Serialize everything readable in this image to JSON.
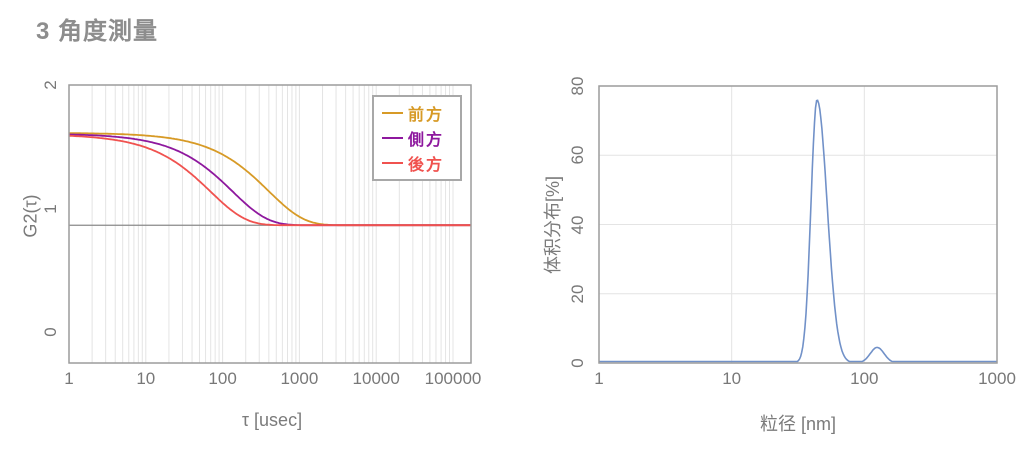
{
  "page": {
    "title": "3 角度測量",
    "title_color": "#8d8d8d",
    "background_color": "#ffffff"
  },
  "chart_data": [
    {
      "type": "line",
      "name": "multi-angle-autocorrelation",
      "xlabel": "τ  [usec]",
      "ylabel": "G2(τ)",
      "x_scale": "log",
      "xlim": [
        1,
        170000
      ],
      "x_ticks": [
        "1",
        "10",
        "100",
        "1000",
        "10000",
        "100000"
      ],
      "ylim": [
        -0.25,
        2
      ],
      "y_ticks": [
        "0",
        "1",
        "2"
      ],
      "grid": "vertical log minor gridlines only",
      "gridline_color": "#e4e4e4",
      "baseline_value": 0.865,
      "baseline_color": "#8a8a8a",
      "plateau_value": 1.61,
      "legend_position": "top-right",
      "series": [
        {
          "name": "前方",
          "color": "#d79a26",
          "plateau": 1.613,
          "baseline": 0.865,
          "tau_c": 400,
          "stretch_beta": 0.95,
          "half_decay_tau_usec": 270
        },
        {
          "name": "側方",
          "color": "#8e189e",
          "plateau": 1.607,
          "baseline": 0.865,
          "tau_c": 135,
          "stretch_beta": 0.95,
          "half_decay_tau_usec": 92
        },
        {
          "name": "後方",
          "color": "#f0524f",
          "plateau": 1.602,
          "baseline": 0.865,
          "tau_c": 70,
          "stretch_beta": 0.95,
          "half_decay_tau_usec": 48
        }
      ]
    },
    {
      "type": "line",
      "name": "particle-size-distribution",
      "xlabel": "粒径 [nm]",
      "ylabel": "体积分布[%]",
      "x_scale": "log",
      "xlim": [
        1,
        1000
      ],
      "x_ticks": [
        "1",
        "10",
        "100",
        "1000"
      ],
      "ylim": [
        0,
        80
      ],
      "y_ticks": [
        "0",
        "20",
        "40",
        "60",
        "80"
      ],
      "grid": "horizontal major gridlines at 20/40/60, vertical gridlines at 10/100",
      "gridline_color": "#e4e4e4",
      "line_color": "#7191c8",
      "peaks": [
        {
          "center_nm": 44,
          "height_pct": 76,
          "sigma_ln_left": 0.105,
          "sigma_ln_right": 0.175
        },
        {
          "center_nm": 125,
          "height_pct": 4.5,
          "sigma_ln_left": 0.12,
          "sigma_ln_right": 0.12
        }
      ]
    }
  ]
}
